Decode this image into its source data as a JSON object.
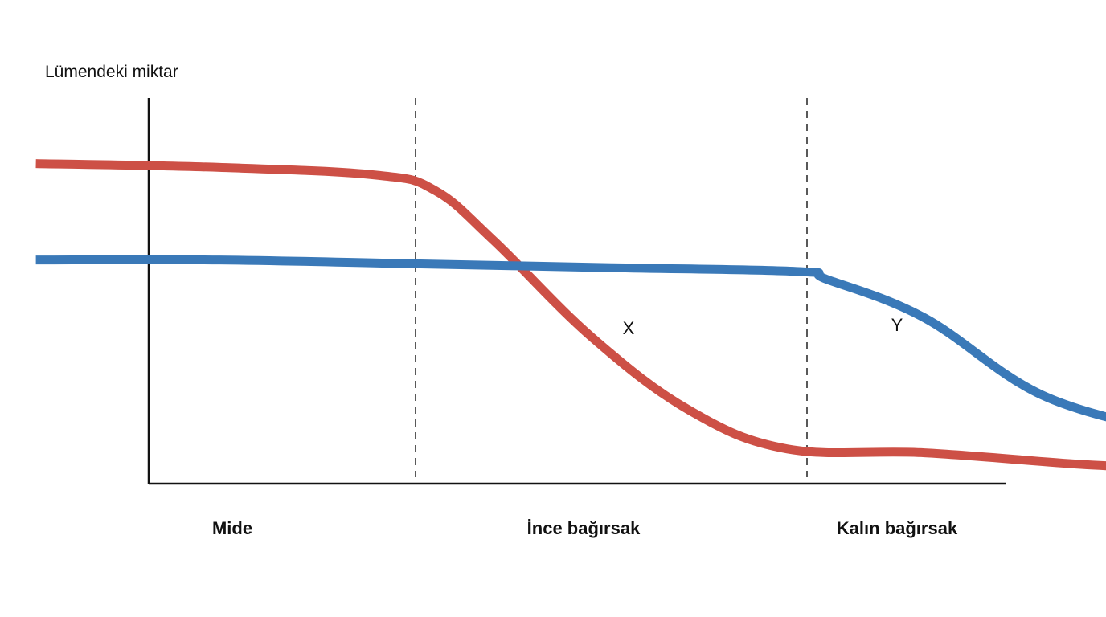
{
  "chart_data": {
    "type": "line",
    "title": "",
    "ylabel": "Lümendeki miktar",
    "xlabel": "",
    "x_regions": [
      "Mide",
      "İnce bağırsak",
      "Kalın bağırsak"
    ],
    "region_boundaries": [
      1,
      2
    ],
    "xlim": [
      0,
      3
    ],
    "ylim": [
      0,
      100
    ],
    "grid": false,
    "series": [
      {
        "name": "X",
        "color": "#cd5046",
        "x": [
          0.03,
          0.5,
          0.9,
          1.05,
          1.2,
          1.45,
          1.7,
          1.95,
          2.3,
          2.7,
          2.94
        ],
        "y": [
          83,
          82,
          80,
          76,
          63,
          38,
          19,
          9,
          8,
          5,
          4
        ]
      },
      {
        "name": "Y",
        "color": "#3a79b8",
        "x": [
          0.03,
          0.5,
          1.0,
          1.5,
          1.98,
          2.05,
          2.3,
          2.6,
          2.94
        ],
        "y": [
          58,
          58,
          57,
          56,
          55,
          53,
          43,
          23,
          13
        ]
      }
    ]
  }
}
